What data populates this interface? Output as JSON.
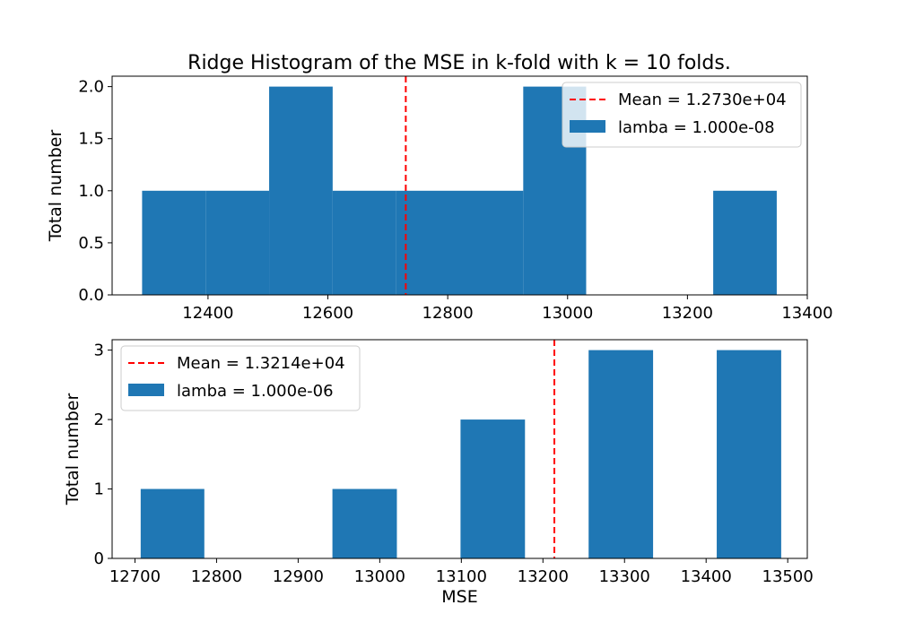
{
  "title": "Ridge Histogram of the MSE in k-fold with k = 10 folds.",
  "colors": {
    "bar": "#1f77b4",
    "mean_line": "#ff0000",
    "axis": "#000000",
    "background": "#ffffff"
  },
  "chart_data": [
    {
      "type": "bar",
      "subtype": "histogram",
      "title": "Ridge Histogram of the MSE in k-fold with k = 10 folds.",
      "xlabel": "",
      "ylabel": "Total number",
      "xlim": [
        12240,
        13400
      ],
      "ylim": [
        0,
        2.1
      ],
      "xticks": [
        12400,
        12600,
        12800,
        13000,
        13200,
        13400
      ],
      "xtick_labels": [
        "12400",
        "12600",
        "12800",
        "13000",
        "13200",
        "13400"
      ],
      "yticks": [
        0,
        0.5,
        1.0,
        1.5,
        2.0
      ],
      "ytick_labels": [
        "0.0",
        "0.5",
        "1.0",
        "1.5",
        "2.0"
      ],
      "bins": [
        {
          "start": 12290,
          "end": 12396,
          "count": 1
        },
        {
          "start": 12396,
          "end": 12502,
          "count": 1
        },
        {
          "start": 12502,
          "end": 12608,
          "count": 2
        },
        {
          "start": 12608,
          "end": 12714,
          "count": 1
        },
        {
          "start": 12714,
          "end": 12820,
          "count": 1
        },
        {
          "start": 12820,
          "end": 12926,
          "count": 1
        },
        {
          "start": 12926,
          "end": 13031,
          "count": 2
        },
        {
          "start": 13031,
          "end": 13137,
          "count": 0
        },
        {
          "start": 13137,
          "end": 13243,
          "count": 0
        },
        {
          "start": 13243,
          "end": 13349,
          "count": 1
        }
      ],
      "mean": 12730,
      "grid": false,
      "legend_position": "top-right",
      "legend": [
        {
          "kind": "line",
          "label": "Mean = 1.2730e+04"
        },
        {
          "kind": "patch",
          "label": "lamba = 1.000e-08"
        }
      ]
    },
    {
      "type": "bar",
      "subtype": "histogram",
      "title": "",
      "xlabel": "MSE",
      "ylabel": "Total number",
      "xlim": [
        12672,
        13524
      ],
      "ylim": [
        0,
        3.15
      ],
      "xticks": [
        12700,
        12800,
        12900,
        13000,
        13100,
        13200,
        13300,
        13400,
        13500
      ],
      "xtick_labels": [
        "12700",
        "12800",
        "12900",
        "13000",
        "13100",
        "13200",
        "13300",
        "13400",
        "13500"
      ],
      "yticks": [
        0,
        1,
        2,
        3
      ],
      "ytick_labels": [
        "0",
        "1",
        "2",
        "3"
      ],
      "bins": [
        {
          "start": 12707,
          "end": 12785,
          "count": 1
        },
        {
          "start": 12785,
          "end": 12864,
          "count": 0
        },
        {
          "start": 12864,
          "end": 12942,
          "count": 0
        },
        {
          "start": 12942,
          "end": 13021,
          "count": 1
        },
        {
          "start": 13021,
          "end": 13099,
          "count": 0
        },
        {
          "start": 13099,
          "end": 13178,
          "count": 2
        },
        {
          "start": 13178,
          "end": 13256,
          "count": 0
        },
        {
          "start": 13256,
          "end": 13335,
          "count": 3
        },
        {
          "start": 13335,
          "end": 13413,
          "count": 0
        },
        {
          "start": 13413,
          "end": 13492,
          "count": 3
        }
      ],
      "mean": 13214,
      "grid": false,
      "legend_position": "top-left",
      "legend": [
        {
          "kind": "line",
          "label": "Mean = 1.3214e+04"
        },
        {
          "kind": "patch",
          "label": "lamba = 1.000e-06"
        }
      ]
    }
  ]
}
